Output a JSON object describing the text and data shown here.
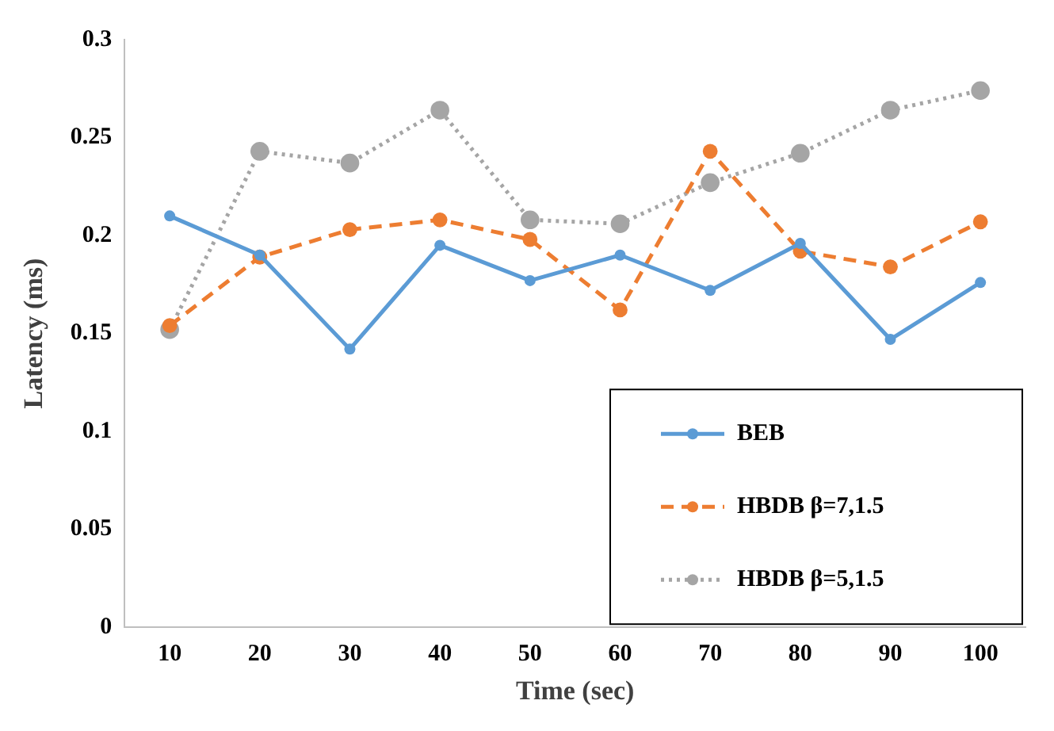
{
  "chart_data": {
    "type": "line",
    "xlabel": "Time (sec)",
    "ylabel": "Latency (ms)",
    "categories": [
      "10",
      "20",
      "30",
      "40",
      "50",
      "60",
      "70",
      "80",
      "90",
      "100"
    ],
    "series": [
      {
        "name": "BEB",
        "color": "#5b9bd5",
        "line_style": "solid",
        "values": [
          0.21,
          0.19,
          0.142,
          0.195,
          0.177,
          0.19,
          0.172,
          0.196,
          0.147,
          0.176
        ]
      },
      {
        "name": "HBDB β=7,1.5",
        "color": "#ed7d31",
        "line_style": "dashed",
        "values": [
          0.154,
          0.189,
          0.203,
          0.208,
          0.198,
          0.162,
          0.243,
          0.192,
          0.184,
          0.207
        ]
      },
      {
        "name": "HBDB β=5,1.5",
        "color": "#a5a5a5",
        "line_style": "dotted",
        "values": [
          0.152,
          0.243,
          0.237,
          0.264,
          0.208,
          0.206,
          0.227,
          0.242,
          0.264,
          0.274
        ]
      }
    ],
    "ylim": [
      0,
      0.3
    ],
    "yticks": [
      0,
      0.05,
      0.1,
      0.15,
      0.2,
      0.25,
      0.3
    ],
    "grid": false,
    "legend": "bottom right",
    "marker": "circle"
  }
}
